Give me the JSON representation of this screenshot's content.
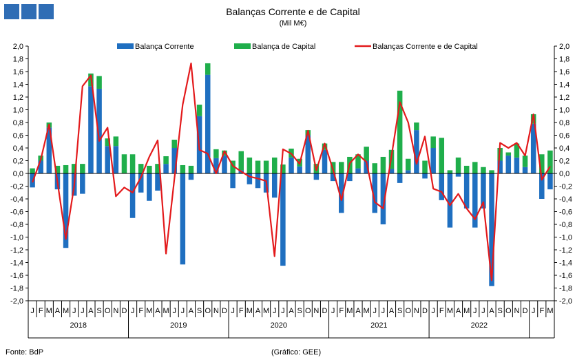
{
  "header": {
    "title": "Balanças Corrente e de Capital",
    "subtitle": "(Mil M€)"
  },
  "footer": {
    "source": "Fonte: BdP",
    "credit": "(Gráfico: GEE)"
  },
  "colors": {
    "corrente": "#1f6fc0",
    "capital": "#1fae4b",
    "total": "#e31a1c",
    "logo": "#2f6db5"
  },
  "chart_data": {
    "type": "bar",
    "ylim": [
      -2.0,
      2.0
    ],
    "yticks": [
      "2,0",
      "1,8",
      "1,6",
      "1,4",
      "1,2",
      "1,0",
      "0,8",
      "0,6",
      "0,4",
      "0,2",
      "0,0",
      "-0,2",
      "-0,4",
      "-0,6",
      "-0,8",
      "-1,0",
      "-1,2",
      "-1,4",
      "-1,6",
      "-1,8",
      "-2,0"
    ],
    "grid": false,
    "legend_position": "top",
    "month_letters": [
      "J",
      "F",
      "M",
      "A",
      "M",
      "J",
      "J",
      "A",
      "S",
      "O",
      "N",
      "D"
    ],
    "years": [
      "2018",
      "2019",
      "2020",
      "2021",
      "2022"
    ],
    "series": [
      {
        "name": "Balança Corrente",
        "type": "bar",
        "values": [
          -0.22,
          0.2,
          0.72,
          -0.25,
          -1.17,
          -0.35,
          -0.32,
          1.37,
          1.33,
          0.43,
          0.43,
          0.0,
          -0.7,
          -0.3,
          -0.43,
          -0.27,
          0.15,
          0.4,
          -1.43,
          -0.1,
          0.9,
          1.55,
          0.24,
          0.28,
          -0.23,
          0.05,
          -0.17,
          -0.23,
          -0.3,
          -0.38,
          -1.45,
          0.25,
          0.11,
          0.6,
          -0.1,
          0.37,
          -0.12,
          -0.62,
          -0.12,
          0.08,
          0.2,
          -0.62,
          -0.8,
          0.07,
          -0.15,
          0.05,
          0.68,
          -0.08,
          0.4,
          -0.42,
          -0.85,
          -0.05,
          -0.55,
          -0.85,
          -0.55,
          -1.77,
          0.2,
          0.28,
          0.25,
          0.1,
          0.78,
          -0.4,
          -0.25
        ]
      },
      {
        "name": "Balança de Capital",
        "type": "bar",
        "values": [
          0.08,
          0.08,
          0.08,
          0.12,
          0.13,
          0.15,
          0.15,
          0.2,
          0.2,
          0.12,
          0.15,
          0.3,
          0.3,
          0.15,
          0.12,
          0.15,
          0.12,
          0.13,
          0.13,
          0.12,
          0.18,
          0.18,
          0.14,
          0.08,
          0.2,
          0.3,
          0.25,
          0.2,
          0.2,
          0.25,
          0.14,
          0.14,
          0.12,
          0.08,
          0.15,
          0.1,
          0.18,
          0.18,
          0.26,
          0.22,
          0.22,
          0.16,
          0.26,
          0.3,
          1.3,
          0.18,
          0.12,
          0.2,
          0.18,
          0.56,
          0.05,
          0.25,
          0.12,
          0.18,
          0.1,
          0.05,
          0.2,
          0.05,
          0.22,
          0.18,
          0.15,
          0.3,
          0.36
        ]
      },
      {
        "name": "Balanças Corrente e de Capital",
        "type": "line",
        "values": [
          -0.14,
          0.22,
          0.77,
          -0.13,
          -1.03,
          -0.2,
          1.37,
          1.54,
          0.51,
          0.72,
          -0.36,
          -0.22,
          -0.3,
          -0.06,
          0.26,
          0.52,
          -1.26,
          -0.09,
          1.08,
          1.73,
          0.37,
          0.31,
          0.0,
          0.35,
          0.12,
          0.03,
          -0.05,
          -0.08,
          -0.12,
          -1.3,
          0.38,
          0.31,
          0.15,
          0.67,
          0.05,
          0.47,
          0.06,
          -0.42,
          0.16,
          0.3,
          0.18,
          -0.45,
          -0.55,
          0.27,
          1.12,
          0.8,
          0.15,
          0.58,
          -0.24,
          -0.29,
          -0.5,
          -0.32,
          -0.55,
          -0.72,
          -0.45,
          -1.68,
          0.48,
          0.4,
          0.48,
          0.28,
          0.93,
          -0.1,
          0.11
        ]
      }
    ]
  }
}
